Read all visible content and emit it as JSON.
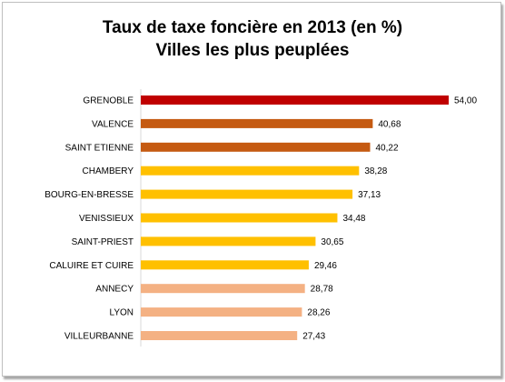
{
  "chart_data": {
    "type": "bar",
    "orientation": "horizontal",
    "title": "Taux de taxe foncière en 2013 (en %)",
    "subtitle": "Villes les plus peuplées",
    "categories": [
      "GRENOBLE",
      "VALENCE",
      "SAINT ETIENNE",
      "CHAMBERY",
      "BOURG-EN-BRESSE",
      "VENISSIEUX",
      "SAINT-PRIEST",
      "CALUIRE ET CUIRE",
      "ANNECY",
      "LYON",
      "VILLEURBANNE"
    ],
    "values": [
      54.0,
      40.68,
      40.22,
      38.28,
      37.13,
      34.48,
      30.65,
      29.46,
      28.78,
      28.26,
      27.43
    ],
    "value_labels": [
      "54,00",
      "40,68",
      "40,22",
      "38,28",
      "37,13",
      "34,48",
      "30,65",
      "29,46",
      "28,78",
      "28,26",
      "27,43"
    ],
    "bar_colors": [
      "#c00000",
      "#c55a11",
      "#c55a11",
      "#ffc000",
      "#ffc000",
      "#ffc000",
      "#ffc000",
      "#ffc000",
      "#f4b183",
      "#f4b183",
      "#f4b183"
    ],
    "xlim": [
      0,
      54
    ],
    "grid": false,
    "legend": "none"
  }
}
